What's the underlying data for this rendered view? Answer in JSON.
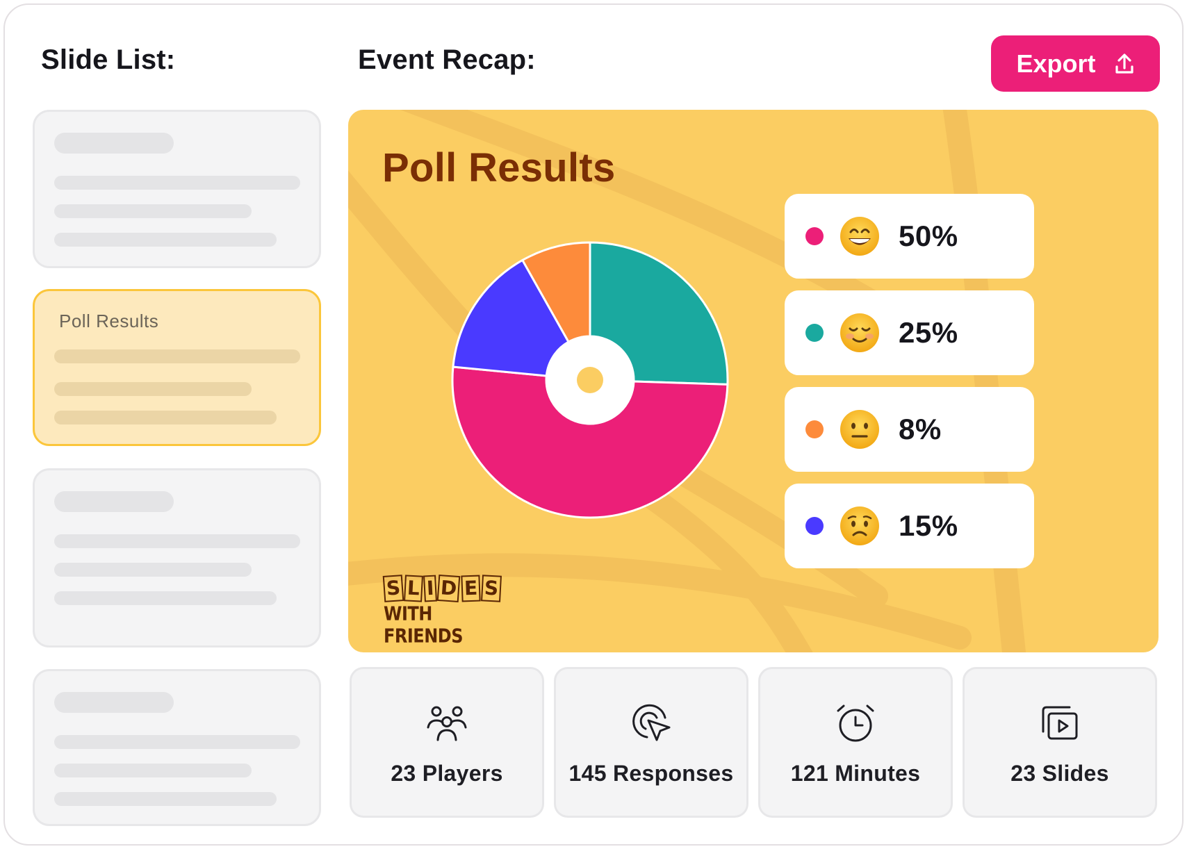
{
  "sidebar": {
    "heading": "Slide List:",
    "selected_slide_label": "Poll Results"
  },
  "main": {
    "heading": "Event Recap:",
    "export_label": "Export"
  },
  "slide": {
    "title": "Poll Results",
    "brand_line1_letters": [
      "S",
      "L",
      "I",
      "D",
      "E",
      "S"
    ],
    "brand_line2": "WITH FRIENDS"
  },
  "colors": {
    "accent": "#ec1f78",
    "preview_bg": "#fbcd62",
    "title_brown": "#7a2e05",
    "pink": "#ec1f78",
    "teal": "#1aa99f",
    "orange": "#fd8b3b",
    "blue": "#4a3aff"
  },
  "chart_data": {
    "type": "pie",
    "donut": true,
    "slices": [
      {
        "label": "50%",
        "value": 50,
        "color": "#ec1f78",
        "emoji": "grinning-face"
      },
      {
        "label": "25%",
        "value": 25,
        "color": "#1aa99f",
        "emoji": "smiling-face"
      },
      {
        "label": "8%",
        "value": 8,
        "color": "#fd8b3b",
        "emoji": "neutral-face"
      },
      {
        "label": "15%",
        "value": 15,
        "color": "#4a3aff",
        "emoji": "worried-face"
      }
    ]
  },
  "stats": [
    {
      "label": "23 Players",
      "icon": "players-icon"
    },
    {
      "label": "145 Responses",
      "icon": "click-icon"
    },
    {
      "label": "121 Minutes",
      "icon": "alarm-clock-icon"
    },
    {
      "label": "23 Slides",
      "icon": "slides-play-icon"
    }
  ]
}
